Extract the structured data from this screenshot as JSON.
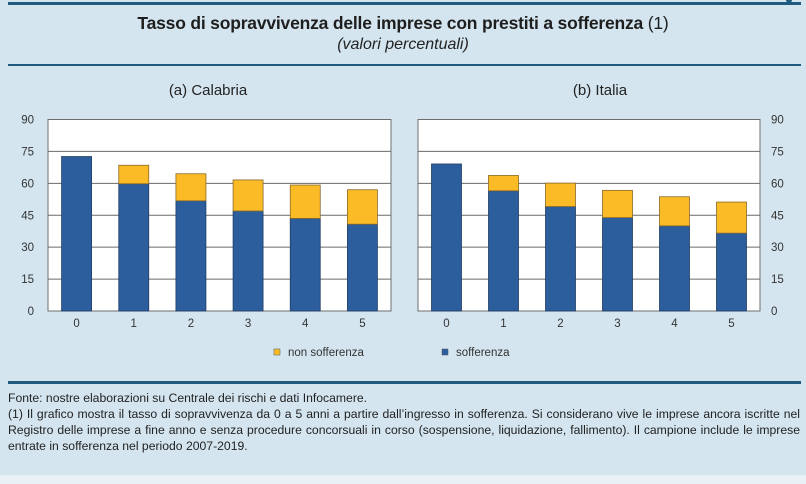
{
  "header": {
    "title": "Tasso di sopravvivenza delle imprese con prestiti a sofferenza",
    "title_note": "(1)",
    "subtitle": "(valori percentuali)"
  },
  "colors": {
    "sofferenza": "#2c5d9c",
    "non_sofferenza": "#fbbb27",
    "background": "#d4e5ef",
    "rule": "#1f5b7e"
  },
  "legend": [
    {
      "key": "non_sofferenza",
      "label": "non sofferenza"
    },
    {
      "key": "sofferenza",
      "label": "sofferenza"
    }
  ],
  "chart_data": [
    {
      "type": "bar",
      "stacked": true,
      "title": "(a) Calabria",
      "categories": [
        "0",
        "1",
        "2",
        "3",
        "4",
        "5"
      ],
      "series": [
        {
          "name": "sofferenza",
          "values": [
            72.6,
            59.8,
            51.8,
            47.0,
            43.5,
            40.8
          ]
        },
        {
          "name": "non sofferenza",
          "values": [
            0,
            8.7,
            12.7,
            14.6,
            15.7,
            16.2
          ]
        }
      ],
      "xlabel": "",
      "ylabel": "",
      "ylim": [
        0,
        90
      ],
      "yticks": [
        0,
        15,
        30,
        45,
        60,
        75,
        90
      ],
      "y_axis_side": "left",
      "grid": true
    },
    {
      "type": "bar",
      "stacked": true,
      "title": "(b) Italia",
      "categories": [
        "0",
        "1",
        "2",
        "3",
        "4",
        "5"
      ],
      "series": [
        {
          "name": "sofferenza",
          "values": [
            69.1,
            56.5,
            49.1,
            43.9,
            40.0,
            36.6
          ]
        },
        {
          "name": "non sofferenza",
          "values": [
            0,
            7.2,
            11.0,
            12.8,
            13.7,
            14.6
          ]
        }
      ],
      "xlabel": "",
      "ylabel": "",
      "ylim": [
        0,
        90
      ],
      "yticks": [
        0,
        15,
        30,
        45,
        60,
        75,
        90
      ],
      "y_axis_side": "right",
      "grid": true
    }
  ],
  "footer": {
    "source": "Fonte: nostre elaborazioni su Centrale dei rischi e dati Infocamere.",
    "note": "(1) Il grafico mostra il tasso di sopravvivenza da 0 a 5 anni a partire dall’ingresso in sofferenza. Si considerano vive le imprese ancora iscritte nel Registro delle imprese a fine anno e senza procedure concorsuali in corso (sospensione, liquidazione, fallimento). Il campione include le imprese entrate in sofferenza nel periodo 2007-2019."
  }
}
